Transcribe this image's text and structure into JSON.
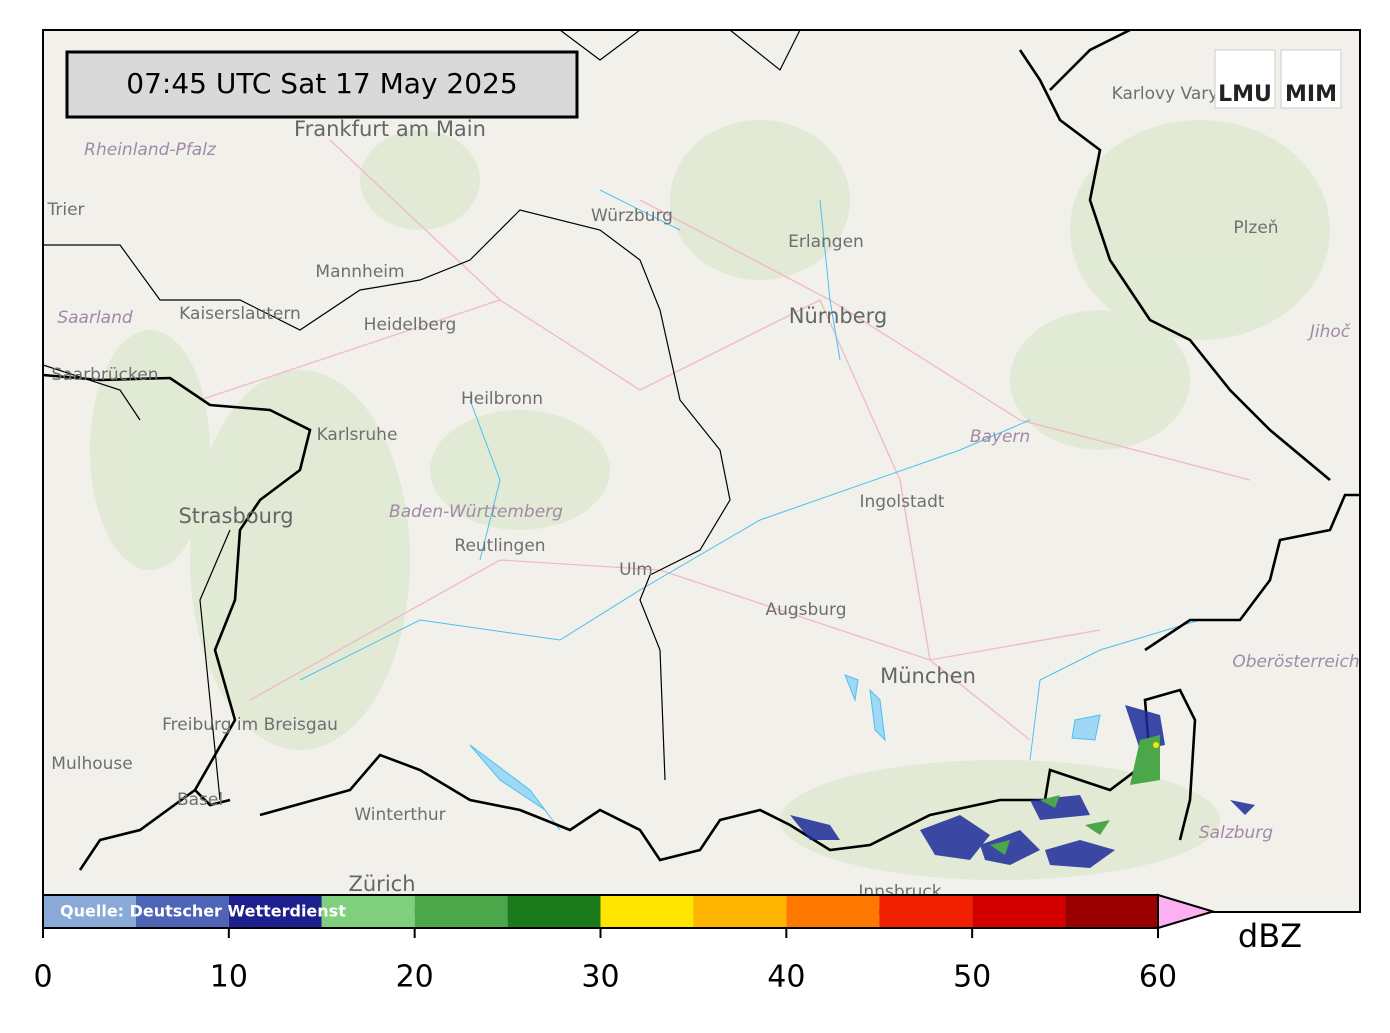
{
  "timestamp": "07:45 UTC  Sat 17 May 2025",
  "logos": [
    "LMU",
    "MIM"
  ],
  "places": [
    "Frankfurt am Main",
    "Rheinland-Pfalz",
    "Trier",
    "Mannheim",
    "Kaiserslautern",
    "Heidelberg",
    "Saarland",
    "Saarbrücken",
    "Karlsruhe",
    "Heilbronn",
    "Würzburg",
    "Erlangen",
    "Nürnberg",
    "Strasbourg",
    "Baden-Württemberg",
    "Reutlingen",
    "Ulm",
    "Augsburg",
    "Ingolstadt",
    "Bayern",
    "München",
    "Freiburg im Breisgau",
    "Mulhouse",
    "Basel",
    "Winterthur",
    "Zürich",
    "Innsbruck",
    "Salzburg",
    "Oberösterreich",
    "Karlovy Vary",
    "Plzeň",
    "Jihoč"
  ],
  "colorbar": {
    "bounds": [
      0,
      5,
      10,
      15,
      20,
      25,
      30,
      35,
      40,
      45,
      50,
      55,
      60
    ],
    "colors": [
      "#89a9d6",
      "#4e64b6",
      "#1c1f8e",
      "#7fcf7c",
      "#4ba74a",
      "#1b7a1b",
      "#ffe600",
      "#ffb400",
      "#ff7800",
      "#f02000",
      "#d40000",
      "#9b0000"
    ],
    "extend_color": "#fcb0f2",
    "ticks": [
      0,
      10,
      20,
      30,
      40,
      50,
      60
    ],
    "label": "dBZ"
  },
  "source": "Quelle: Deutscher Wetterdienst"
}
